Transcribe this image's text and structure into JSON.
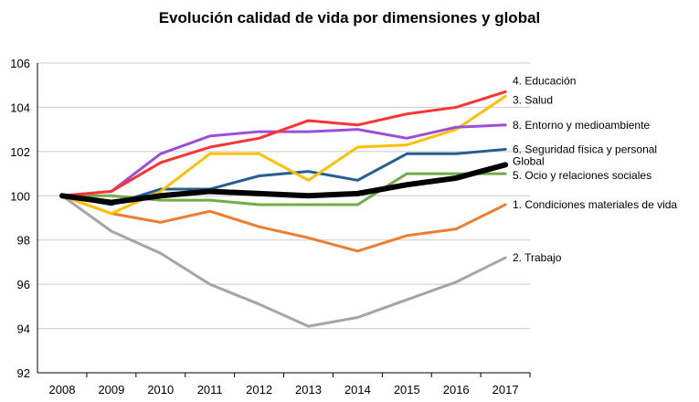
{
  "chart_data": {
    "type": "line",
    "title": "Evolución calidad de vida por dimensiones y global",
    "xlabel": "",
    "ylabel": "",
    "ylim": [
      92,
      106
    ],
    "yticks": [
      92,
      94,
      96,
      98,
      100,
      102,
      104,
      106
    ],
    "grid": true,
    "legend": "direct labels at right end of lines",
    "x": [
      "2008",
      "2009",
      "2010",
      "2011",
      "2012",
      "2013",
      "2014",
      "2015",
      "2016",
      "2017"
    ],
    "series": [
      {
        "name": "4. Educación",
        "color": "#ff3333",
        "values": [
          100,
          100.2,
          101.5,
          102.2,
          102.6,
          103.4,
          103.2,
          103.7,
          104.0,
          104.7
        ]
      },
      {
        "name": "3. Salud",
        "color": "#ffc000",
        "values": [
          100,
          99.2,
          100.2,
          101.9,
          101.9,
          100.7,
          102.2,
          102.3,
          103.0,
          104.5
        ]
      },
      {
        "name": "8. Entorno y medioambiente",
        "color": "#9b4fd6",
        "values": [
          100,
          100.2,
          101.9,
          102.7,
          102.9,
          102.9,
          103.0,
          102.6,
          103.1,
          103.2
        ]
      },
      {
        "name": "6. Seguridad física y personal",
        "color": "#255e91",
        "values": [
          100,
          99.6,
          100.3,
          100.3,
          100.9,
          101.1,
          100.7,
          101.9,
          101.9,
          102.1
        ]
      },
      {
        "name": "Global",
        "color": "#000000",
        "values": [
          100,
          99.7,
          100.0,
          100.2,
          100.1,
          100.0,
          100.1,
          100.5,
          100.8,
          101.4
        ]
      },
      {
        "name": "5. Ocio y relaciones sociales",
        "color": "#70ad47",
        "values": [
          100,
          100.0,
          99.8,
          99.8,
          99.6,
          99.6,
          99.6,
          101.0,
          101.0,
          101.0
        ]
      },
      {
        "name": "1. Condiciones materiales de vida",
        "color": "#ed7d31",
        "values": [
          100,
          99.2,
          98.8,
          99.3,
          98.6,
          98.1,
          97.5,
          98.2,
          98.5,
          99.6
        ]
      },
      {
        "name": "2. Trabajo",
        "color": "#a5a5a5",
        "values": [
          100,
          98.4,
          97.4,
          96.0,
          95.1,
          94.1,
          94.5,
          95.3,
          96.1,
          97.2
        ]
      }
    ]
  }
}
